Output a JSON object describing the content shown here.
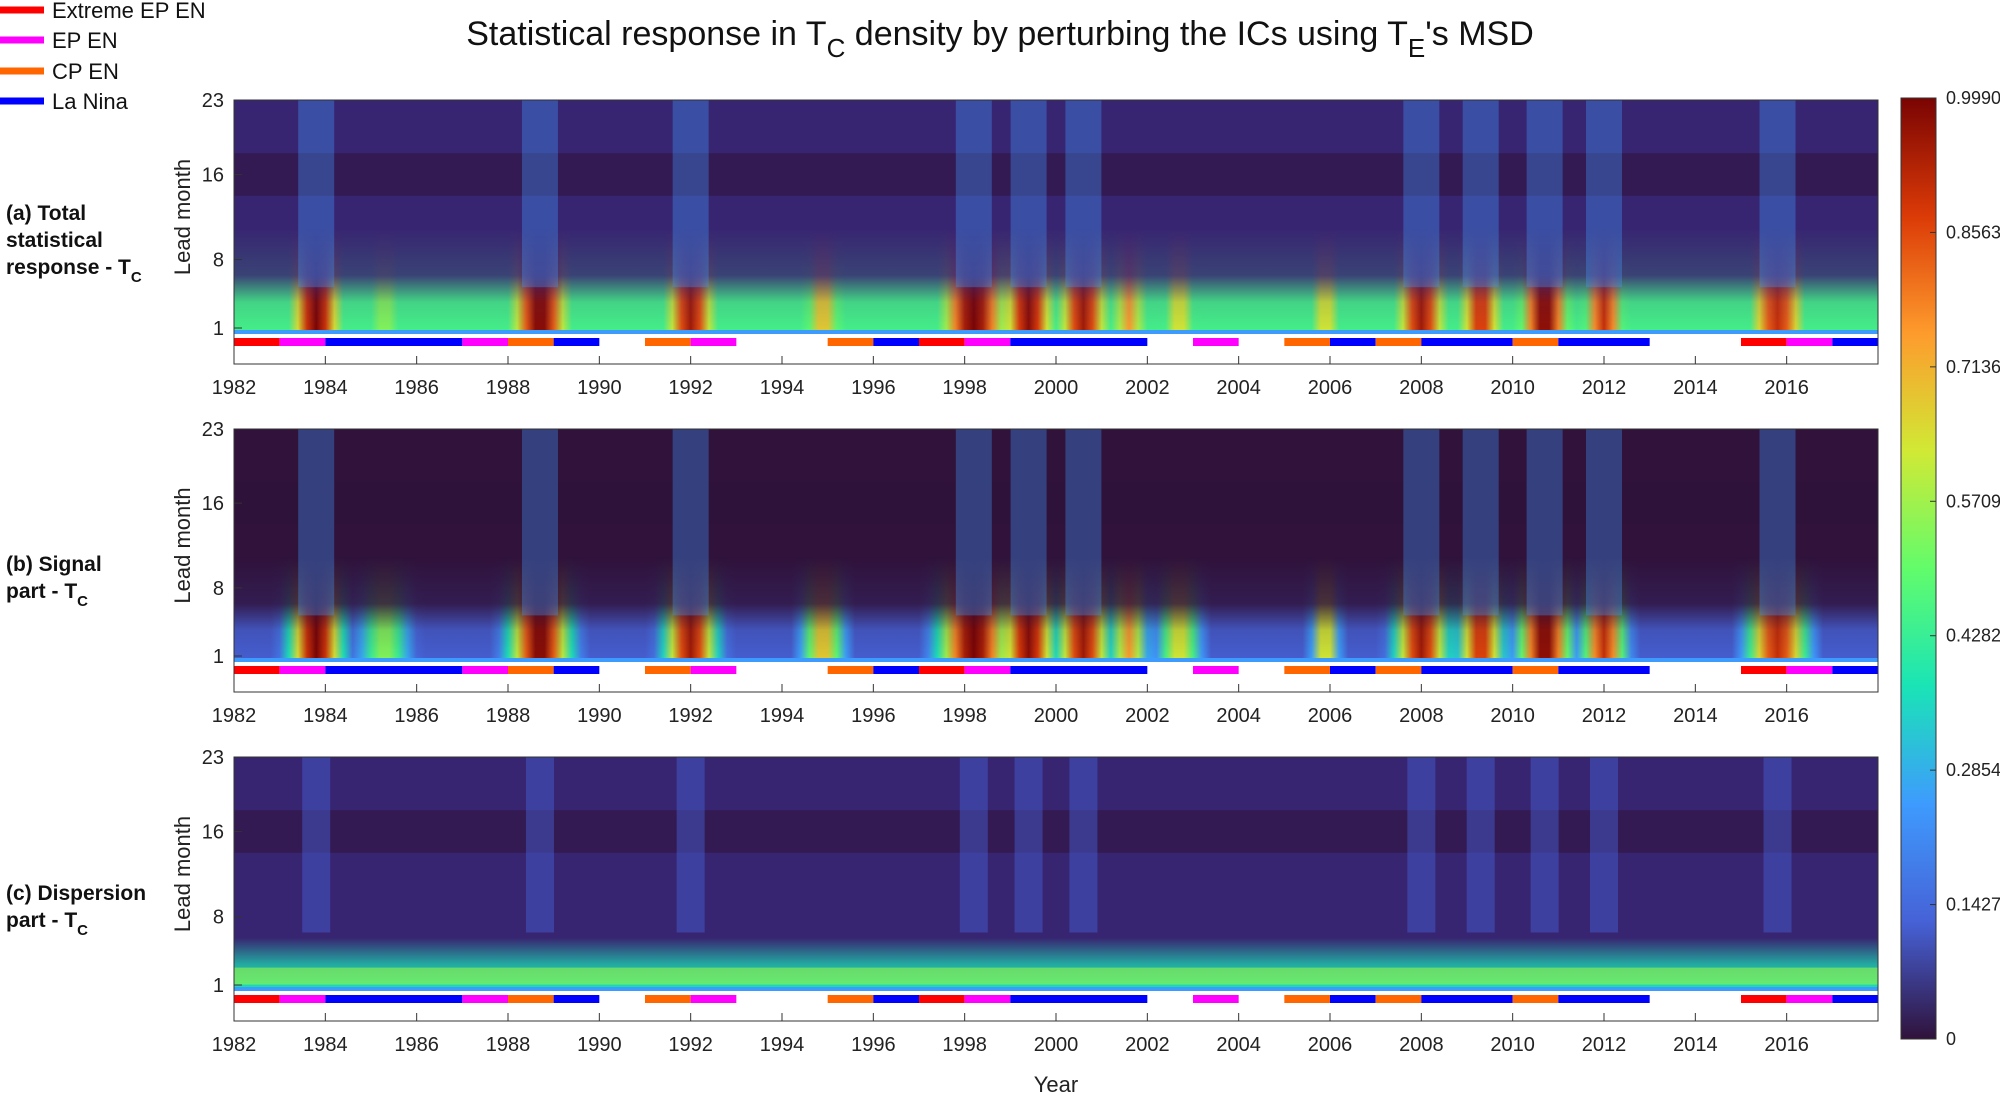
{
  "title": {
    "main": "Statistical response in T",
    "sub1": "C",
    "mid": " density by perturbing the ICs using T",
    "sub2": "E",
    "end": "'s MSD"
  },
  "legend": [
    {
      "label": "Extreme EP EN",
      "color": "#ff0000"
    },
    {
      "label": "EP EN",
      "color": "#ff00ff"
    },
    {
      "label": "CP EN",
      "color": "#ff6600"
    },
    {
      "label": "La Nina",
      "color": "#0000ff"
    }
  ],
  "panels": [
    {
      "line1": "(a) Total",
      "line2": "statistical",
      "line3": "response - T",
      "sub": "C"
    },
    {
      "line1": "(b) Signal",
      "line2": "part - T",
      "sub": "C"
    },
    {
      "line1": "(c) Dispersion",
      "line2": "part - T",
      "sub": "C"
    }
  ],
  "colorbar": {
    "ticks": [
      "0.9990",
      "0.8563",
      "0.7136",
      "0.5709",
      "0.4282",
      "0.2854",
      "0.1427",
      "0"
    ],
    "colors": [
      "#7a0403",
      "#db3a07",
      "#fe9b2d",
      "#d1e935",
      "#62fc6b",
      "#1ae4b6",
      "#3e9bfe",
      "#4662d7",
      "#30123b"
    ]
  },
  "chart_data": {
    "type": "heatmap",
    "title": "Statistical response in T_C density by perturbing the ICs using T_E's MSD",
    "xlabel": "Year",
    "ylabel": "Lead month",
    "xlim": [
      1982,
      2018
    ],
    "x_ticks": [
      "1982",
      "1984",
      "1986",
      "1988",
      "1990",
      "1992",
      "1994",
      "1996",
      "1998",
      "2000",
      "2002",
      "2004",
      "2006",
      "2008",
      "2010",
      "2012",
      "2014",
      "2016"
    ],
    "y_ticks": [
      "1",
      "8",
      "16",
      "23"
    ],
    "ylim": [
      1,
      23
    ],
    "zlim": [
      0,
      0.999
    ],
    "colormap": "turbo",
    "subplots": [
      "(a) Total statistical response - T_C",
      "(b) Signal part - T_C",
      "(c) Dispersion part - T_C"
    ],
    "enso_events": [
      {
        "start": 1982,
        "end": 1983,
        "type": "Extreme EP EN"
      },
      {
        "start": 1983,
        "end": 1984,
        "type": "EP EN"
      },
      {
        "start": 1984,
        "end": 1987,
        "type": "La Nina"
      },
      {
        "start": 1987,
        "end": 1988,
        "type": "EP EN"
      },
      {
        "start": 1988,
        "end": 1989,
        "type": "CP EN"
      },
      {
        "start": 1989,
        "end": 1990,
        "type": "La Nina"
      },
      {
        "start": 1991,
        "end": 1992,
        "type": "CP EN"
      },
      {
        "start": 1992,
        "end": 1993,
        "type": "EP EN"
      },
      {
        "start": 1995,
        "end": 1996,
        "type": "CP EN"
      },
      {
        "start": 1996,
        "end": 1997,
        "type": "La Nina"
      },
      {
        "start": 1997,
        "end": 1998,
        "type": "Extreme EP EN"
      },
      {
        "start": 1998,
        "end": 1999,
        "type": "EP EN"
      },
      {
        "start": 1999,
        "end": 2002,
        "type": "La Nina"
      },
      {
        "start": 2003,
        "end": 2004,
        "type": "EP EN"
      },
      {
        "start": 2005,
        "end": 2006,
        "type": "CP EN"
      },
      {
        "start": 2006,
        "end": 2007,
        "type": "La Nina"
      },
      {
        "start": 2007,
        "end": 2008,
        "type": "CP EN"
      },
      {
        "start": 2008,
        "end": 2010,
        "type": "La Nina"
      },
      {
        "start": 2010,
        "end": 2011,
        "type": "CP EN"
      },
      {
        "start": 2011,
        "end": 2013,
        "type": "La Nina"
      },
      {
        "start": 2015,
        "end": 2016,
        "type": "Extreme EP EN"
      },
      {
        "start": 2016,
        "end": 2017,
        "type": "EP EN"
      },
      {
        "start": 2017,
        "end": 2018,
        "type": "La Nina"
      }
    ],
    "hotspots": [
      {
        "center": 1983.8,
        "width": 0.6,
        "value": 0.999
      },
      {
        "center": 1985.3,
        "width": 0.6,
        "value": 0.55
      },
      {
        "center": 1988.7,
        "width": 0.7,
        "value": 0.999
      },
      {
        "center": 1992.0,
        "width": 0.6,
        "value": 0.95
      },
      {
        "center": 1994.9,
        "width": 0.5,
        "value": 0.7
      },
      {
        "center": 1998.2,
        "width": 0.8,
        "value": 0.999
      },
      {
        "center": 1999.4,
        "width": 0.6,
        "value": 0.98
      },
      {
        "center": 2000.6,
        "width": 0.6,
        "value": 0.95
      },
      {
        "center": 2001.6,
        "width": 0.4,
        "value": 0.75
      },
      {
        "center": 2002.7,
        "width": 0.5,
        "value": 0.65
      },
      {
        "center": 2005.9,
        "width": 0.3,
        "value": 0.7
      },
      {
        "center": 2008.0,
        "width": 0.6,
        "value": 0.95
      },
      {
        "center": 2009.3,
        "width": 0.5,
        "value": 0.9
      },
      {
        "center": 2010.7,
        "width": 0.6,
        "value": 0.999
      },
      {
        "center": 2012.0,
        "width": 0.5,
        "value": 0.9
      },
      {
        "center": 2015.8,
        "width": 0.7,
        "value": 0.9
      }
    ]
  }
}
